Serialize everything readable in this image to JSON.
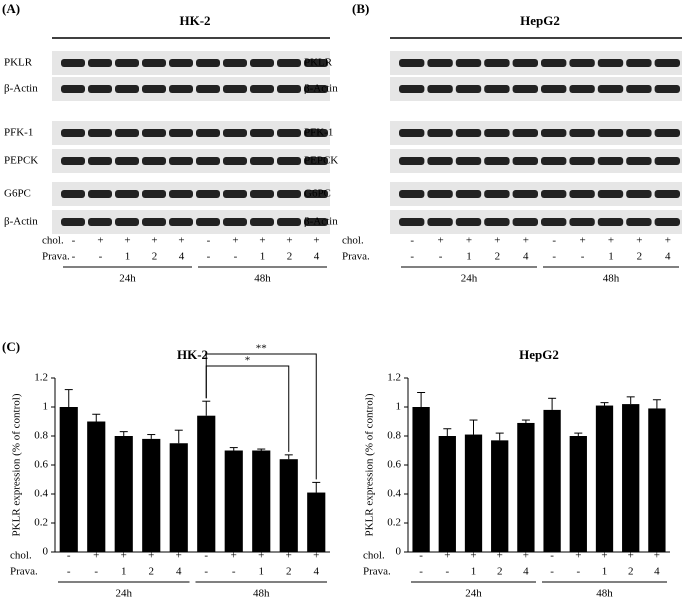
{
  "panel_labels": [
    "(A)",
    "(B)",
    "(C)"
  ],
  "blots": [
    {
      "title": "HK-2",
      "rows": [
        "PKLR",
        "β-Actin",
        "PFK-1",
        "PEPCK",
        "G6PC",
        "β-Actin"
      ]
    },
    {
      "title": "HepG2",
      "rows": [
        "PKLR",
        "β-Actin",
        "PFK-1",
        "PEPCK",
        "G6PC",
        "β-Actin"
      ]
    }
  ],
  "conditions": {
    "chol_label": "chol.",
    "prava_label": "Prava.",
    "chol": [
      "-",
      "+",
      "+",
      "+",
      "+",
      "-",
      "+",
      "+",
      "+",
      "+"
    ],
    "prava": [
      "-",
      "-",
      "1",
      "2",
      "4",
      "-",
      "-",
      "1",
      "2",
      "4"
    ],
    "groups": [
      "24h",
      "48h"
    ]
  },
  "chart_data": [
    {
      "type": "bar",
      "title": "HK-2",
      "y_label": "PKLR expression (% of control)",
      "values": [
        1.0,
        0.9,
        0.8,
        0.78,
        0.75,
        0.94,
        0.7,
        0.7,
        0.64,
        0.41
      ],
      "errors": [
        0.12,
        0.05,
        0.03,
        0.03,
        0.09,
        0.1,
        0.02,
        0.01,
        0.03,
        0.07
      ],
      "color": "#000000",
      "ylim": [
        0,
        1.2
      ],
      "yticks": [
        0,
        0.2,
        0.4,
        0.6,
        0.8,
        1,
        1.2
      ],
      "significance": [
        {
          "from": 5,
          "to": 8,
          "label": "*"
        },
        {
          "from": 5,
          "to": 9,
          "label": "**"
        }
      ]
    },
    {
      "type": "bar",
      "title": "HepG2",
      "y_label": "PKLR expression (% of control)",
      "values": [
        1.0,
        0.8,
        0.81,
        0.77,
        0.89,
        0.98,
        0.8,
        1.01,
        1.02,
        0.99
      ],
      "errors": [
        0.1,
        0.05,
        0.1,
        0.05,
        0.02,
        0.08,
        0.02,
        0.02,
        0.05,
        0.06
      ],
      "color": "#000000",
      "ylim": [
        0,
        1.2
      ],
      "yticks": [
        0,
        0.2,
        0.4,
        0.6,
        0.8,
        1,
        1.2
      ]
    }
  ]
}
